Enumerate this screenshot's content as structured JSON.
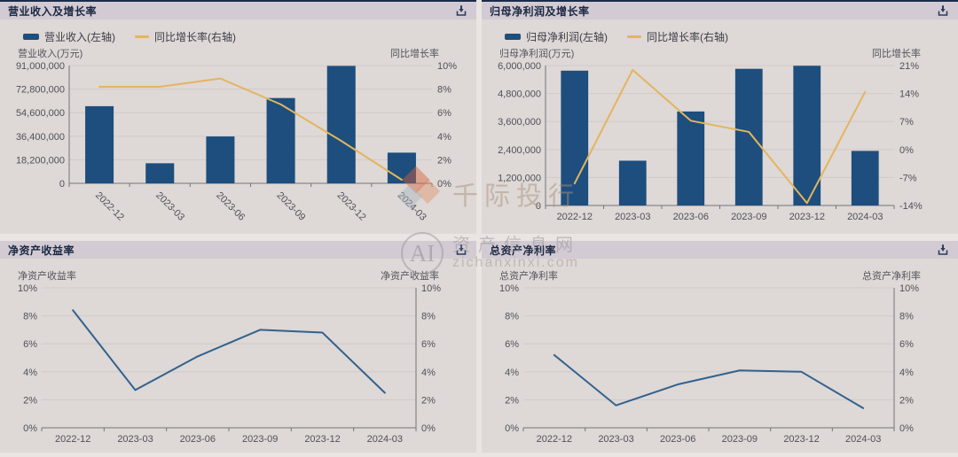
{
  "colors": {
    "page_bg": "#eae5e2",
    "panel_bg": "#ded8d6",
    "header_bg": "#d2cbd3",
    "accent_navy": "#1c2b4a",
    "bar": "#1d4e7d",
    "gold_line": "#e3b55e",
    "blue_line": "#31628f",
    "grid": "#d1cac8",
    "axis": "#74747f",
    "tick_text": "#50505a"
  },
  "icons": {
    "download": "download-icon"
  },
  "watermark": {
    "brand": "千际投行",
    "ai": "AI",
    "site": "资产信息网",
    "domain": "zichanxinxi.com"
  },
  "chart_data": [
    {
      "type": "bar",
      "title": "营业收入及增长率",
      "categories": [
        "2022-12",
        "2023-03",
        "2023-06",
        "2023-09",
        "2023-12",
        "2024-03"
      ],
      "x_label_rotate": 45,
      "legend_position": "top-left",
      "grid": true,
      "left_axis": {
        "name": "营业收入(万元)",
        "labels": [
          "0",
          "18,200,000",
          "36,400,000",
          "54,600,000",
          "72,800,000",
          "91,000,000"
        ],
        "min": 0,
        "max": 91000000
      },
      "right_axis": {
        "name": "同比增长率",
        "labels": [
          "0%",
          "2%",
          "4%",
          "6%",
          "8%",
          "10%"
        ],
        "min": 0,
        "max": 10
      },
      "series": [
        {
          "name": "营业收入(左轴)",
          "kind": "bar",
          "axis": "left",
          "color": "#1d4e7d",
          "values": [
            59600000,
            15500000,
            36200000,
            65900000,
            90700000,
            23700000
          ]
        },
        {
          "name": "同比增长率(右轴)",
          "kind": "line",
          "axis": "right",
          "color": "#e3b55e",
          "values": [
            8.2,
            8.2,
            8.9,
            6.7,
            3.6,
            0.3
          ]
        }
      ]
    },
    {
      "type": "bar",
      "title": "归母净利润及增长率",
      "categories": [
        "2022-12",
        "2023-03",
        "2023-06",
        "2023-09",
        "2023-12",
        "2024-03"
      ],
      "x_label_rotate": 0,
      "legend_position": "top-left",
      "grid": true,
      "left_axis": {
        "name": "归母净利润(万元)",
        "labels": [
          "0",
          "1,200,000",
          "2,400,000",
          "3,600,000",
          "4,800,000",
          "6,000,000"
        ],
        "min": 0,
        "max": 6000000
      },
      "right_axis": {
        "name": "同比增长率",
        "labels": [
          "-14%",
          "-7%",
          "0%",
          "7%",
          "14%",
          "21%"
        ],
        "min": -14,
        "max": 21
      },
      "series": [
        {
          "name": "归母净利润(左轴)",
          "kind": "bar",
          "axis": "left",
          "color": "#1d4e7d",
          "values": [
            5780000,
            1920000,
            4030000,
            5860000,
            5990000,
            2340000
          ]
        },
        {
          "name": "同比增长率(右轴)",
          "kind": "line",
          "axis": "right",
          "color": "#e3b55e",
          "values": [
            -8.5,
            19.9,
            7.2,
            4.4,
            -13.4,
            14.4
          ]
        }
      ]
    },
    {
      "type": "line",
      "title": "净资产收益率",
      "categories": [
        "2022-12",
        "2023-03",
        "2023-06",
        "2023-09",
        "2023-12",
        "2024-03"
      ],
      "x_label_rotate": 0,
      "grid": true,
      "left_axis": {
        "name": "净资产收益率",
        "labels": [
          "0%",
          "2%",
          "4%",
          "6%",
          "8%",
          "10%"
        ],
        "min": 0,
        "max": 10
      },
      "right_axis": {
        "name": "净资产收益率",
        "labels": [
          "0%",
          "2%",
          "4%",
          "6%",
          "8%",
          "10%"
        ],
        "min": 0,
        "max": 10
      },
      "series": [
        {
          "name": "净资产收益率",
          "kind": "line",
          "axis": "left",
          "color": "#31628f",
          "values": [
            8.4,
            2.7,
            5.1,
            7.0,
            6.8,
            2.5
          ]
        }
      ]
    },
    {
      "type": "line",
      "title": "总资产净利率",
      "categories": [
        "2022-12",
        "2023-03",
        "2023-06",
        "2023-09",
        "2023-12",
        "2024-03"
      ],
      "x_label_rotate": 0,
      "grid": true,
      "left_axis": {
        "name": "总资产净利率",
        "labels": [
          "0%",
          "2%",
          "4%",
          "6%",
          "8%",
          "10%"
        ],
        "min": 0,
        "max": 10
      },
      "right_axis": {
        "name": "总资产净利率",
        "labels": [
          "0%",
          "2%",
          "4%",
          "6%",
          "8%",
          "10%"
        ],
        "min": 0,
        "max": 10
      },
      "series": [
        {
          "name": "总资产净利率",
          "kind": "line",
          "axis": "left",
          "color": "#31628f",
          "values": [
            5.2,
            1.6,
            3.1,
            4.1,
            4.0,
            1.4
          ]
        }
      ]
    }
  ]
}
